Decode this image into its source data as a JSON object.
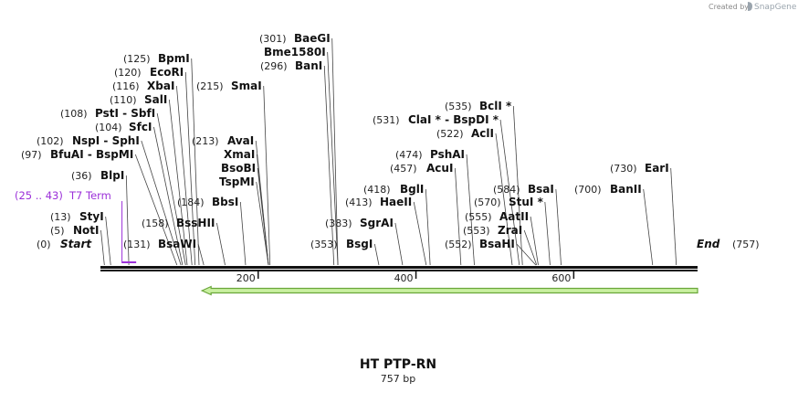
{
  "credit": {
    "prefix": "Created by",
    "brand": "SnapGene"
  },
  "map": {
    "name": "HT PTP-RN",
    "length_label": "757 bp",
    "length": 757,
    "start": {
      "pos": "(0)",
      "label": "Start"
    },
    "end": {
      "pos": "(757)",
      "label": "End"
    },
    "ticks": [
      {
        "value": 200,
        "label": "200"
      },
      {
        "value": 400,
        "label": "400"
      },
      {
        "value": 600,
        "label": "600"
      }
    ],
    "feature": {
      "pos": "(25 .. 43)",
      "label": "T7 Term",
      "from": 25,
      "to": 43
    },
    "orf": {
      "from": 131,
      "to": 757,
      "direction": "reverse"
    },
    "sites": [
      {
        "pos": "(5)",
        "name": "NotI",
        "at": 5
      },
      {
        "pos": "(13)",
        "name": "StyI",
        "at": 13
      },
      {
        "pos": "(36)",
        "name": "BlpI",
        "at": 36
      },
      {
        "pos": "(97)",
        "name": "BfuAI - BspMI",
        "at": 97
      },
      {
        "pos": "(102)",
        "name": "NspI - SphI",
        "at": 102
      },
      {
        "pos": "(104)",
        "name": "SfcI",
        "at": 104
      },
      {
        "pos": "(108)",
        "name": "PstI - SbfI",
        "at": 108
      },
      {
        "pos": "(110)",
        "name": "SalI",
        "at": 110
      },
      {
        "pos": "(116)",
        "name": "XbaI",
        "at": 116
      },
      {
        "pos": "(120)",
        "name": "EcoRI",
        "at": 120
      },
      {
        "pos": "(125)",
        "name": "BpmI",
        "at": 125
      },
      {
        "pos": "(131)",
        "name": "BsaWI",
        "at": 131
      },
      {
        "pos": "(158)",
        "name": "BssHII",
        "at": 158
      },
      {
        "pos": "(184)",
        "name": "BbsI",
        "at": 184
      },
      {
        "pos": "(213)",
        "name": "AvaI",
        "at": 213
      },
      {
        "pos": "",
        "name": "XmaI",
        "at": 213
      },
      {
        "pos": "",
        "name": "BsoBI",
        "at": 213
      },
      {
        "pos": "",
        "name": "TspMI",
        "at": 213
      },
      {
        "pos": "(215)",
        "name": "SmaI",
        "at": 215
      },
      {
        "pos": "(296)",
        "name": "BanI",
        "at": 296
      },
      {
        "pos": "",
        "name": "Bme1580I",
        "at": 301
      },
      {
        "pos": "(301)",
        "name": "BaeGI",
        "at": 301
      },
      {
        "pos": "(353)",
        "name": "BsgI",
        "at": 353
      },
      {
        "pos": "(383)",
        "name": "SgrAI",
        "at": 383
      },
      {
        "pos": "(413)",
        "name": "HaeII",
        "at": 413
      },
      {
        "pos": "(418)",
        "name": "BglI",
        "at": 418
      },
      {
        "pos": "(457)",
        "name": "AcuI",
        "at": 457
      },
      {
        "pos": "(474)",
        "name": "PshAI",
        "at": 474
      },
      {
        "pos": "(522)",
        "name": "AclI",
        "at": 522
      },
      {
        "pos": "(531)",
        "name": "ClaI * - BspDI *",
        "at": 531
      },
      {
        "pos": "(535)",
        "name": "BclI *",
        "at": 535
      },
      {
        "pos": "(552)",
        "name": "BsaHI",
        "at": 552
      },
      {
        "pos": "(553)",
        "name": "ZraI",
        "at": 553
      },
      {
        "pos": "(555)",
        "name": "AatII",
        "at": 555
      },
      {
        "pos": "(570)",
        "name": "StuI *",
        "at": 570
      },
      {
        "pos": "(584)",
        "name": "BsaI",
        "at": 584
      },
      {
        "pos": "(700)",
        "name": "BanII",
        "at": 700
      },
      {
        "pos": "(730)",
        "name": "EarI",
        "at": 730
      }
    ],
    "colors": {
      "backbone": "#111111",
      "feature": "#9b30d9",
      "orf_fill": "#c9f0a0",
      "orf_stroke": "#6aa63a"
    }
  }
}
